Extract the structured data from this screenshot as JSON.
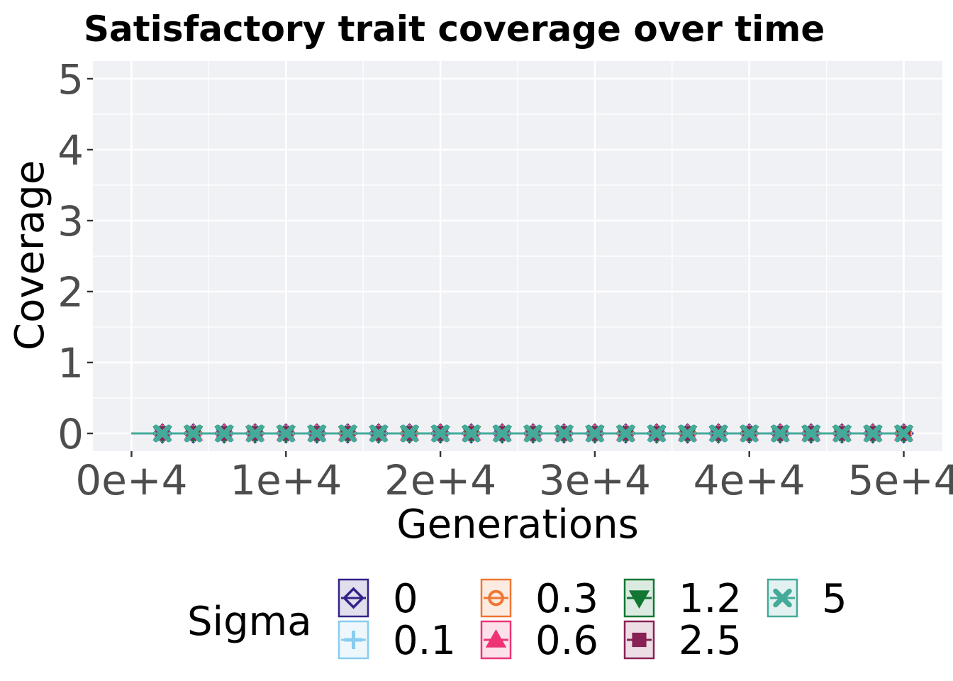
{
  "chart_data": {
    "type": "line",
    "title": "Satisfactory trait coverage over time",
    "xlabel": "Generations",
    "ylabel": "Coverage",
    "xlim": [
      -2500,
      52500
    ],
    "ylim": [
      -0.25,
      5.25
    ],
    "x_ticks": [
      0,
      10000,
      20000,
      30000,
      40000,
      50000
    ],
    "x_tick_labels": [
      "0e+4",
      "1e+4",
      "2e+4",
      "3e+4",
      "4e+4",
      "5e+4"
    ],
    "y_ticks": [
      0,
      1,
      2,
      3,
      4,
      5
    ],
    "y_tick_labels": [
      "0",
      "1",
      "2",
      "3",
      "4",
      "5"
    ],
    "grid": true,
    "panel_background": "#f0f1f5",
    "legend": {
      "title": "Sigma",
      "position": "bottom",
      "columns": [
        [
          "0",
          "0.1"
        ],
        [
          "0.3",
          "0.6"
        ],
        [
          "1.2",
          "2.5"
        ],
        [
          "5"
        ]
      ]
    },
    "x": [
      0,
      2000,
      4000,
      6000,
      8000,
      10000,
      12000,
      14000,
      16000,
      18000,
      20000,
      22000,
      24000,
      26000,
      28000,
      30000,
      32000,
      34000,
      36000,
      38000,
      40000,
      42000,
      44000,
      46000,
      48000,
      50000
    ],
    "series": [
      {
        "name": "0",
        "color": "#332288",
        "marker": "diamond",
        "values": [
          0,
          0,
          0,
          0,
          0,
          0,
          0,
          0,
          0,
          0,
          0,
          0,
          0,
          0,
          0,
          0,
          0,
          0,
          0,
          0,
          0,
          0,
          0,
          0,
          0,
          0
        ]
      },
      {
        "name": "0.1",
        "color": "#88ccee",
        "marker": "plus",
        "values": [
          0,
          0,
          0,
          0,
          0,
          0,
          0,
          0,
          0,
          0,
          0,
          0,
          0,
          0,
          0,
          0,
          0,
          0,
          0,
          0,
          0,
          0,
          0,
          0,
          0,
          0
        ]
      },
      {
        "name": "0.3",
        "color": "#ee7733",
        "marker": "circle",
        "values": [
          0,
          0,
          0,
          0,
          0,
          0,
          0,
          0,
          0,
          0,
          0,
          0,
          0,
          0,
          0,
          0,
          0,
          0,
          0,
          0,
          0,
          0,
          0,
          0,
          0,
          0
        ]
      },
      {
        "name": "0.6",
        "color": "#ee3377",
        "marker": "triangle",
        "values": [
          0,
          0,
          0,
          0,
          0,
          0,
          0,
          0,
          0,
          0,
          0,
          0,
          0,
          0,
          0,
          0,
          0,
          0,
          0,
          0,
          0,
          0,
          0,
          0,
          0,
          0
        ]
      },
      {
        "name": "1.2",
        "color": "#117733",
        "marker": "triangle-down",
        "values": [
          0,
          0,
          0,
          0,
          0,
          0,
          0,
          0,
          0,
          0,
          0,
          0,
          0,
          0,
          0,
          0,
          0,
          0,
          0,
          0,
          0,
          0,
          0,
          0,
          0,
          0
        ]
      },
      {
        "name": "2.5",
        "color": "#882255",
        "marker": "square",
        "values": [
          0,
          0,
          0,
          0,
          0,
          0,
          0,
          0,
          0,
          0,
          0,
          0,
          0,
          0,
          0,
          0,
          0,
          0,
          0,
          0,
          0,
          0,
          0,
          0,
          0,
          0
        ]
      },
      {
        "name": "5",
        "color": "#44aa99",
        "marker": "x",
        "values": [
          0,
          0,
          0,
          0,
          0,
          0,
          0,
          0,
          0,
          0,
          0,
          0,
          0,
          0,
          0,
          0,
          0,
          0,
          0,
          0,
          0,
          0,
          0,
          0,
          0,
          0
        ]
      }
    ]
  }
}
